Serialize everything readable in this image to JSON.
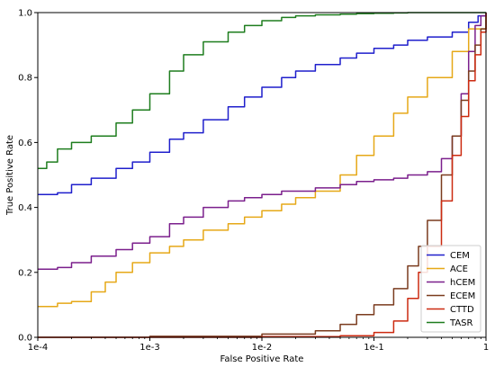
{
  "chart_data": {
    "type": "line",
    "title": "",
    "xlabel": "False Positive Rate",
    "ylabel": "True Positive Rate",
    "xscale": "log",
    "xlim": [
      0.0001,
      1
    ],
    "ylim": [
      0,
      1
    ],
    "x_ticks": [
      {
        "value": 0.0001,
        "label": "1e-4"
      },
      {
        "value": 0.001,
        "label": "1e-3"
      },
      {
        "value": 0.01,
        "label": "1e-2"
      },
      {
        "value": 0.1,
        "label": "1e-1"
      },
      {
        "value": 1,
        "label": "1"
      }
    ],
    "y_ticks": [
      {
        "value": 0.0,
        "label": "0.0"
      },
      {
        "value": 0.2,
        "label": "0.2"
      },
      {
        "value": 0.4,
        "label": "0.4"
      },
      {
        "value": 0.6,
        "label": "0.6"
      },
      {
        "value": 0.8,
        "label": "0.8"
      },
      {
        "value": 1.0,
        "label": "1.0"
      }
    ],
    "grid": false,
    "legend": {
      "position": "bottom-right"
    },
    "series": [
      {
        "name": "CEM",
        "color": "#1f1fcc",
        "x": [
          0.0001,
          0.00015,
          0.0002,
          0.0003,
          0.0005,
          0.0007,
          0.001,
          0.0015,
          0.002,
          0.003,
          0.005,
          0.007,
          0.01,
          0.015,
          0.02,
          0.03,
          0.05,
          0.07,
          0.1,
          0.15,
          0.2,
          0.3,
          0.5,
          0.7,
          0.85,
          1.0
        ],
        "y": [
          0.44,
          0.445,
          0.47,
          0.49,
          0.52,
          0.54,
          0.57,
          0.61,
          0.63,
          0.67,
          0.71,
          0.74,
          0.77,
          0.8,
          0.82,
          0.84,
          0.86,
          0.875,
          0.89,
          0.9,
          0.915,
          0.925,
          0.94,
          0.97,
          0.99,
          1.0
        ]
      },
      {
        "name": "ACE",
        "color": "#e6a817",
        "x": [
          0.0001,
          0.00015,
          0.0002,
          0.0003,
          0.0004,
          0.0005,
          0.0007,
          0.001,
          0.0015,
          0.002,
          0.003,
          0.005,
          0.007,
          0.01,
          0.015,
          0.02,
          0.03,
          0.05,
          0.07,
          0.1,
          0.15,
          0.2,
          0.3,
          0.5,
          0.7,
          1.0
        ],
        "y": [
          0.095,
          0.105,
          0.11,
          0.14,
          0.17,
          0.2,
          0.23,
          0.26,
          0.28,
          0.3,
          0.33,
          0.35,
          0.37,
          0.39,
          0.41,
          0.43,
          0.45,
          0.5,
          0.56,
          0.62,
          0.69,
          0.74,
          0.8,
          0.88,
          0.95,
          1.0
        ]
      },
      {
        "name": "hCEM",
        "color": "#7b1f8c",
        "x": [
          0.0001,
          0.00015,
          0.0002,
          0.0003,
          0.0005,
          0.0007,
          0.001,
          0.0015,
          0.002,
          0.003,
          0.005,
          0.007,
          0.01,
          0.015,
          0.02,
          0.03,
          0.05,
          0.07,
          0.1,
          0.15,
          0.2,
          0.3,
          0.4,
          0.5,
          0.6,
          0.7,
          0.8,
          0.9,
          1.0
        ],
        "y": [
          0.21,
          0.215,
          0.23,
          0.25,
          0.27,
          0.29,
          0.31,
          0.35,
          0.37,
          0.4,
          0.42,
          0.43,
          0.44,
          0.45,
          0.45,
          0.46,
          0.47,
          0.48,
          0.485,
          0.49,
          0.5,
          0.51,
          0.55,
          0.62,
          0.75,
          0.88,
          0.96,
          0.99,
          1.0
        ]
      },
      {
        "name": "ECEM",
        "color": "#7a3b1e",
        "x": [
          0.0001,
          0.001,
          0.01,
          0.03,
          0.05,
          0.07,
          0.1,
          0.15,
          0.2,
          0.25,
          0.3,
          0.4,
          0.5,
          0.6,
          0.7,
          0.8,
          0.9,
          1.0
        ],
        "y": [
          0.0,
          0.003,
          0.01,
          0.02,
          0.04,
          0.07,
          0.1,
          0.15,
          0.22,
          0.28,
          0.36,
          0.5,
          0.62,
          0.73,
          0.82,
          0.9,
          0.95,
          0.99
        ]
      },
      {
        "name": "CTTD",
        "color": "#cc2a10",
        "x": [
          0.0001,
          0.001,
          0.01,
          0.05,
          0.1,
          0.15,
          0.2,
          0.25,
          0.3,
          0.4,
          0.5,
          0.6,
          0.7,
          0.8,
          0.9,
          1.0
        ],
        "y": [
          0.0,
          0.0,
          0.002,
          0.005,
          0.015,
          0.05,
          0.12,
          0.2,
          0.28,
          0.42,
          0.56,
          0.68,
          0.79,
          0.87,
          0.94,
          1.0
        ]
      },
      {
        "name": "TASR",
        "color": "#1e7d1e",
        "x": [
          0.0001,
          0.00012,
          0.00015,
          0.0002,
          0.0003,
          0.0005,
          0.0007,
          0.001,
          0.0015,
          0.002,
          0.003,
          0.005,
          0.007,
          0.01,
          0.015,
          0.02,
          0.03,
          0.05,
          0.07,
          0.1,
          0.15,
          0.2,
          1.0
        ],
        "y": [
          0.52,
          0.54,
          0.58,
          0.6,
          0.62,
          0.66,
          0.7,
          0.75,
          0.82,
          0.87,
          0.91,
          0.94,
          0.96,
          0.975,
          0.985,
          0.99,
          0.993,
          0.995,
          0.997,
          0.998,
          0.999,
          1.0,
          1.0
        ]
      }
    ]
  }
}
